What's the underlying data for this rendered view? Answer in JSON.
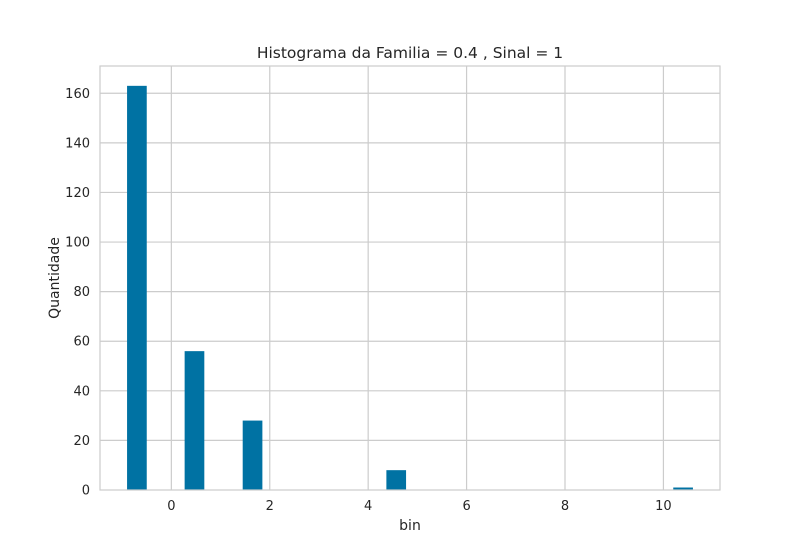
{
  "chart_data": {
    "type": "bar",
    "title": "Histograma da Familia = 0.4 , Sinal = 1",
    "xlabel": "bin",
    "ylabel": "Quantidade",
    "xlim": [
      -1.45,
      11.15
    ],
    "ylim": [
      0,
      171
    ],
    "xticks": [
      0,
      2,
      4,
      6,
      8,
      10
    ],
    "yticks": [
      0,
      20,
      40,
      60,
      80,
      100,
      120,
      140,
      160
    ],
    "bar_width": 0.4,
    "bars": [
      {
        "x": -0.7,
        "value": 163
      },
      {
        "x": 0.47,
        "value": 56
      },
      {
        "x": 1.65,
        "value": 28
      },
      {
        "x": 4.57,
        "value": 8
      },
      {
        "x": 10.4,
        "value": 1
      }
    ],
    "grid": true,
    "colors": {
      "bar": "#0072a3",
      "grid": "#cccccc",
      "spine": "#cccccc",
      "text": "#262626"
    }
  }
}
